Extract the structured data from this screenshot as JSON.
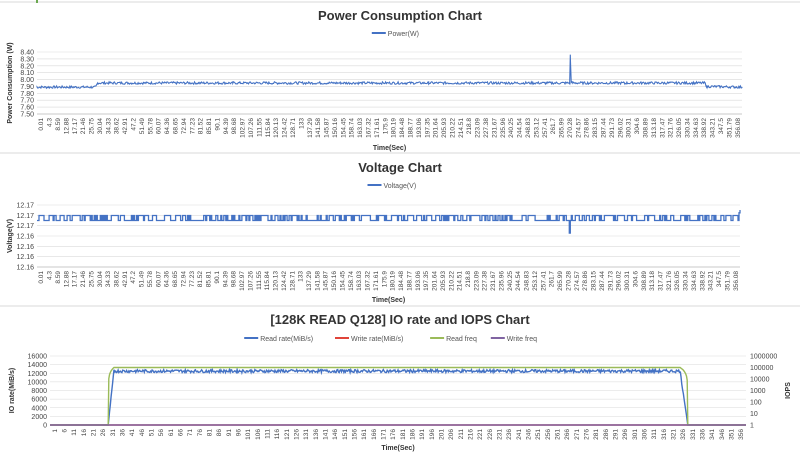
{
  "chart_data": [
    {
      "type": "line",
      "title": "Power Consumption Chart",
      "xlabel": "Time(Sec)",
      "ylabel": "Power Consumption (W)",
      "ylim": [
        7.5,
        8.4
      ],
      "yticks": [
        "7.50",
        "7.60",
        "7.70",
        "7.80",
        "7.90",
        "8.00",
        "8.10",
        "8.20",
        "8.30",
        "8.40"
      ],
      "xlim": [
        0,
        360
      ],
      "xticks": [
        "0.01",
        "4.3",
        "8.59",
        "12.88",
        "17.17",
        "21.46",
        "25.75",
        "30.04",
        "34.33",
        "38.62",
        "42.91",
        "47.2",
        "51.49",
        "55.78",
        "60.07",
        "64.36",
        "68.65",
        "72.94",
        "77.23",
        "81.52",
        "85.81",
        "90.1",
        "94.39",
        "98.68",
        "102.97",
        "107.26",
        "111.55",
        "115.84",
        "120.13",
        "124.42",
        "128.71",
        "133",
        "137.29",
        "141.58",
        "145.87",
        "150.16",
        "154.45",
        "158.74",
        "163.03",
        "167.32",
        "171.61",
        "175.9",
        "180.19",
        "184.48",
        "188.77",
        "193.06",
        "197.35",
        "201.64",
        "205.93",
        "210.22",
        "214.51",
        "218.8",
        "223.09",
        "227.38",
        "231.67",
        "235.96",
        "240.25",
        "244.54",
        "248.83",
        "253.12",
        "257.41",
        "261.7",
        "265.99",
        "270.28",
        "274.57",
        "278.86",
        "283.15",
        "287.44",
        "291.73",
        "296.02",
        "300.31",
        "304.6",
        "308.89",
        "313.18",
        "317.47",
        "321.76",
        "326.05",
        "330.34",
        "334.63",
        "338.92",
        "343.21",
        "347.5",
        "351.79",
        "356.08"
      ],
      "grid": true,
      "legend_position": "top",
      "series": [
        {
          "name": "Power(W)",
          "color": "#4472C4",
          "x": [
            0,
            30,
            31,
            100,
            200,
            272,
            272.3,
            272.8,
            273.5,
            300,
            341,
            342,
            360
          ],
          "values": [
            7.89,
            7.89,
            7.95,
            7.95,
            7.95,
            7.95,
            8.37,
            7.97,
            7.95,
            7.95,
            7.95,
            7.9,
            7.89
          ]
        }
      ]
    },
    {
      "type": "line",
      "title": "Voltage Chart",
      "xlabel": "Time(Sec)",
      "ylabel": "Voltage(V)",
      "ylim": [
        12.16,
        12.17
      ],
      "yticks": [
        "12.16",
        "12.16",
        "12.16",
        "12.16",
        "12.17",
        "12.17",
        "12.17"
      ],
      "xlim": [
        0,
        360
      ],
      "xticks": [
        "0.01",
        "4.3",
        "8.59",
        "12.88",
        "17.17",
        "21.46",
        "25.75",
        "30.04",
        "34.33",
        "38.62",
        "42.91",
        "47.2",
        "51.49",
        "55.78",
        "60.07",
        "64.36",
        "68.65",
        "72.94",
        "77.23",
        "81.52",
        "85.81",
        "90.1",
        "94.39",
        "98.68",
        "102.97",
        "107.26",
        "111.55",
        "115.84",
        "120.13",
        "124.42",
        "128.71",
        "133",
        "137.29",
        "141.58",
        "145.87",
        "150.16",
        "154.45",
        "158.74",
        "163.03",
        "167.32",
        "171.61",
        "175.9",
        "180.19",
        "184.48",
        "188.77",
        "193.06",
        "197.35",
        "201.64",
        "205.93",
        "210.22",
        "214.51",
        "218.8",
        "223.09",
        "227.38",
        "231.67",
        "235.96",
        "240.25",
        "244.54",
        "248.83",
        "253.12",
        "257.41",
        "261.7",
        "265.99",
        "270.28",
        "274.57",
        "278.86",
        "283.15",
        "287.44",
        "291.73",
        "296.02",
        "300.31",
        "304.6",
        "308.89",
        "313.18",
        "317.47",
        "321.76",
        "326.05",
        "330.34",
        "334.63",
        "338.92",
        "343.21",
        "347.5",
        "351.79",
        "356.08"
      ],
      "grid": true,
      "legend_position": "top",
      "series": [
        {
          "name": "Voltage(V)",
          "color": "#4472C4",
          "pattern": "square-wave",
          "levels": [
            12.1683,
            12.1675
          ],
          "x": [
            0,
            272,
            272.5,
            273,
            359,
            360
          ],
          "values": [
            12.1683,
            12.1683,
            12.165,
            12.1683,
            12.1683,
            12.1692
          ]
        }
      ]
    },
    {
      "type": "line",
      "title": "[128K READ Q128] IO rate and IOPS Chart",
      "xlabel": "Time(Sec)",
      "ylabel": "IO rate(MiB/s)",
      "y2label": "IOPS",
      "ylim": [
        0,
        16000
      ],
      "yticks": [
        "0",
        "2000",
        "4000",
        "6000",
        "8000",
        "10000",
        "12000",
        "14000",
        "16000"
      ],
      "y2scale": "log",
      "y2lim": [
        1,
        1000000
      ],
      "y2ticks": [
        "1",
        "10",
        "100",
        "1000",
        "10000",
        "100000",
        "1000000"
      ],
      "xlim": [
        1,
        360
      ],
      "xticks": [
        "1",
        "6",
        "11",
        "16",
        "21",
        "26",
        "31",
        "36",
        "41",
        "46",
        "51",
        "56",
        "61",
        "66",
        "71",
        "76",
        "81",
        "86",
        "91",
        "96",
        "101",
        "106",
        "111",
        "116",
        "121",
        "126",
        "131",
        "136",
        "141",
        "146",
        "151",
        "156",
        "161",
        "166",
        "171",
        "176",
        "181",
        "186",
        "191",
        "196",
        "201",
        "206",
        "211",
        "216",
        "221",
        "226",
        "231",
        "236",
        "241",
        "246",
        "251",
        "256",
        "261",
        "266",
        "271",
        "276",
        "281",
        "286",
        "291",
        "296",
        "301",
        "306",
        "311",
        "316",
        "321",
        "326",
        "331",
        "336",
        "341",
        "346",
        "351",
        "356"
      ],
      "grid": true,
      "legend_position": "top",
      "series": [
        {
          "name": "Read rate(MiB/s)",
          "color": "#4472C4",
          "axis": "left",
          "x": [
            1,
            31,
            34,
            100,
            200,
            326,
            330,
            360
          ],
          "values": [
            0,
            0,
            12500,
            12500,
            12500,
            12500,
            0,
            0
          ]
        },
        {
          "name": "Write rate(MiB/s)",
          "color": "#E0443A",
          "axis": "left",
          "x": [
            1,
            360
          ],
          "values": [
            0,
            0
          ]
        },
        {
          "name": "Read freq",
          "color": "#9BBB59",
          "axis": "right",
          "x": [
            1,
            31,
            34,
            100,
            200,
            326,
            330,
            360
          ],
          "values": [
            1,
            1,
            100000,
            100000,
            100000,
            100000,
            1,
            1
          ]
        },
        {
          "name": "Write freq",
          "color": "#8064A2",
          "axis": "right",
          "x": [
            1,
            360
          ],
          "values": [
            1,
            1
          ]
        }
      ]
    }
  ]
}
